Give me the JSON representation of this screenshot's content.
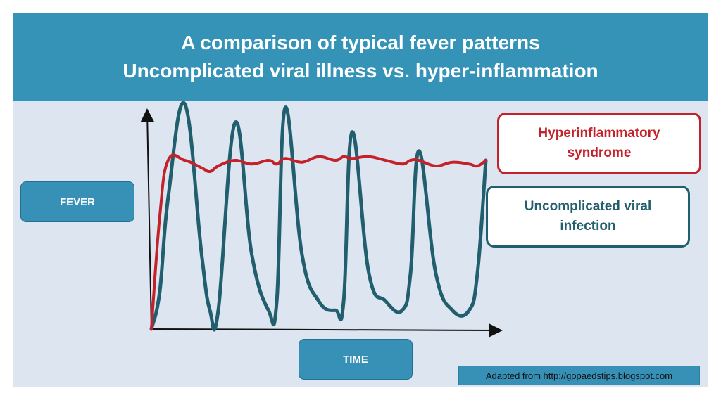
{
  "title": {
    "line1": "A comparison of typical fever patterns",
    "line2": "Uncomplicated viral illness vs. hyper-inflammation"
  },
  "axes": {
    "y_label": "FEVER",
    "x_label": "TIME"
  },
  "callouts": {
    "hyperinflammatory": "Hyperinflammatory\nsyndrome",
    "viral": "Uncomplicated viral\ninfection"
  },
  "credit": "Adapted from http://gppaedstips.blogspot.com",
  "colors": {
    "title_bar": "#3693b8",
    "hyperinflammatory_line": "#c3222a",
    "viral_line": "#225f6e",
    "background": "#dde6f0"
  },
  "chart_data": {
    "type": "line",
    "xlabel": "TIME",
    "ylabel": "FEVER",
    "x": [
      0,
      0.5,
      1,
      2,
      3,
      3.5,
      4,
      5,
      6,
      7,
      7.5,
      8,
      9,
      10,
      11,
      11.5,
      12,
      13,
      14,
      15,
      15.5,
      16,
      17,
      18,
      19,
      19.5,
      20
    ],
    "xlim": [
      0,
      20
    ],
    "ylim": [
      0,
      12
    ],
    "series": [
      {
        "name": "Uncomplicated viral infection",
        "values": [
          0,
          2,
          7,
          12,
          4,
          1,
          1,
          11,
          4,
          1,
          1.5,
          11.8,
          4,
          1.5,
          1,
          1.5,
          10.5,
          3,
          1.5,
          1,
          3,
          9.5,
          3,
          1,
          1,
          3,
          9
        ]
      },
      {
        "name": "Hyperinflammatory syndrome",
        "values": [
          0,
          6,
          9,
          9,
          8.6,
          8.4,
          8.7,
          9,
          8.8,
          9,
          8.8,
          9.1,
          8.9,
          9.2,
          9,
          9.2,
          9.1,
          9.2,
          9,
          8.8,
          9,
          9,
          8.7,
          8.9,
          8.8,
          8.7,
          9
        ]
      }
    ],
    "grid": false,
    "legend": "none"
  }
}
